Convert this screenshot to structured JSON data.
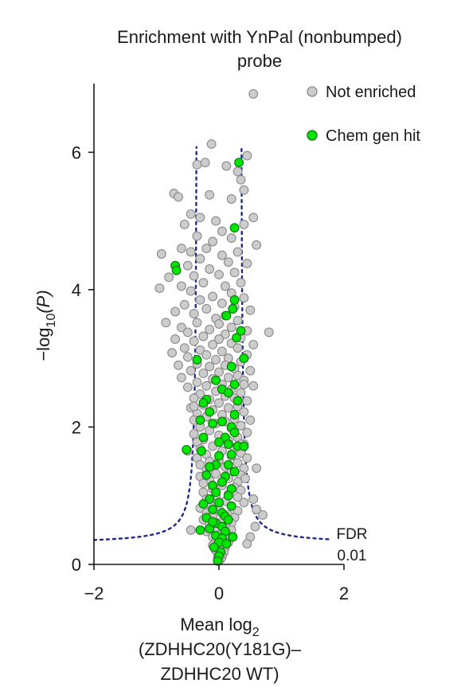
{
  "panel_label": "",
  "chart_data": {
    "type": "scatter",
    "title": [
      "Enrichment with YnPal (nonbumped)",
      "probe"
    ],
    "xlabel": {
      "line1_main": "Mean log",
      "line1_sub": "2",
      "line2": "(ZDHHC20(Y181G)–",
      "line3": "ZDHHC20 WT)"
    },
    "ylabel": {
      "pre": "−log",
      "sub": "10",
      "post": "(P)"
    },
    "xlim": [
      -2,
      2
    ],
    "ylim": [
      0,
      7
    ],
    "x_ticks": [
      {
        "value": -2,
        "label": "−2"
      },
      {
        "value": 0,
        "label": "0"
      },
      {
        "value": 2,
        "label": "2"
      }
    ],
    "y_ticks": [
      {
        "value": 0,
        "label": "0"
      },
      {
        "value": 2,
        "label": "2"
      },
      {
        "value": 4,
        "label": "4"
      },
      {
        "value": 6,
        "label": "6"
      }
    ],
    "grid": false,
    "legend_position": "top-right",
    "series": [
      {
        "name": "Not enriched",
        "color": "#cccccc",
        "edge_color": "#8a8a8a",
        "points": [
          [
            0.55,
            6.85
          ],
          [
            -0.12,
            6.12
          ],
          [
            0.45,
            5.95
          ],
          [
            -0.35,
            5.82
          ],
          [
            -0.22,
            5.85
          ],
          [
            0.12,
            5.8
          ],
          [
            0.3,
            5.72
          ],
          [
            0.35,
            5.6
          ],
          [
            0.4,
            5.45
          ],
          [
            -0.72,
            5.4
          ],
          [
            -0.65,
            5.35
          ],
          [
            -0.15,
            5.38
          ],
          [
            0.2,
            5.32
          ],
          [
            -0.45,
            5.1
          ],
          [
            -0.3,
            5.05
          ],
          [
            0.55,
            5.05
          ],
          [
            -0.05,
            5.0
          ],
          [
            0.4,
            4.95
          ],
          [
            -0.55,
            4.95
          ],
          [
            0.05,
            4.85
          ],
          [
            -0.35,
            4.78
          ],
          [
            0.2,
            4.75
          ],
          [
            -0.1,
            4.7
          ],
          [
            0.6,
            4.65
          ],
          [
            -0.2,
            4.6
          ],
          [
            0.3,
            4.55
          ],
          [
            -0.6,
            4.6
          ],
          [
            -0.45,
            4.55
          ],
          [
            0.05,
            4.5
          ],
          [
            -0.92,
            4.52
          ],
          [
            -0.3,
            4.45
          ],
          [
            0.15,
            4.4
          ],
          [
            -0.5,
            4.35
          ],
          [
            0.45,
            4.38
          ],
          [
            -0.15,
            4.3
          ],
          [
            0.25,
            4.25
          ],
          [
            -0.4,
            4.2
          ],
          [
            0.0,
            4.22
          ],
          [
            -0.8,
            4.18
          ],
          [
            -0.25,
            4.1
          ],
          [
            0.35,
            4.1
          ],
          [
            -0.6,
            4.05
          ],
          [
            0.1,
            4.05
          ],
          [
            -0.95,
            4.02
          ],
          [
            -0.45,
            3.98
          ],
          [
            0.2,
            3.95
          ],
          [
            -0.1,
            3.9
          ],
          [
            0.4,
            3.88
          ],
          [
            -0.3,
            3.85
          ],
          [
            0.05,
            3.8
          ],
          [
            -0.55,
            3.78
          ],
          [
            0.25,
            3.75
          ],
          [
            -0.2,
            3.72
          ],
          [
            0.5,
            3.7
          ],
          [
            -0.7,
            3.68
          ],
          [
            -0.4,
            3.65
          ],
          [
            0.1,
            3.62
          ],
          [
            -0.05,
            3.58
          ],
          [
            0.3,
            3.55
          ],
          [
            -0.35,
            3.52
          ],
          [
            -0.85,
            3.52
          ],
          [
            0.0,
            3.5
          ],
          [
            -0.6,
            3.45
          ],
          [
            0.2,
            3.45
          ],
          [
            -0.15,
            3.42
          ],
          [
            0.45,
            3.4
          ],
          [
            0.8,
            3.38
          ],
          [
            -0.5,
            3.38
          ],
          [
            0.1,
            3.35
          ],
          [
            -0.25,
            3.32
          ],
          [
            0.35,
            3.3
          ],
          [
            -0.7,
            3.28
          ],
          [
            0.0,
            3.28
          ],
          [
            -0.4,
            3.25
          ],
          [
            0.2,
            3.22
          ],
          [
            -0.1,
            3.2
          ],
          [
            0.55,
            3.2
          ],
          [
            -0.55,
            3.15
          ],
          [
            0.3,
            3.15
          ],
          [
            -0.3,
            3.12
          ],
          [
            0.05,
            3.1
          ],
          [
            -0.75,
            3.08
          ],
          [
            -0.2,
            3.05
          ],
          [
            0.45,
            3.05
          ],
          [
            -0.5,
            3.02
          ],
          [
            0.15,
            3.0
          ],
          [
            -0.05,
            2.98
          ],
          [
            0.35,
            2.95
          ],
          [
            -0.35,
            2.92
          ],
          [
            -0.65,
            2.9
          ],
          [
            0.1,
            2.9
          ],
          [
            -0.15,
            2.88
          ],
          [
            0.25,
            2.85
          ],
          [
            -0.45,
            2.82
          ],
          [
            0.5,
            2.82
          ],
          [
            0.0,
            2.8
          ],
          [
            -0.25,
            2.78
          ],
          [
            0.3,
            2.75
          ],
          [
            -0.6,
            2.72
          ],
          [
            0.15,
            2.72
          ],
          [
            -0.1,
            2.7
          ],
          [
            0.4,
            2.68
          ],
          [
            -0.35,
            2.65
          ],
          [
            0.05,
            2.62
          ],
          [
            -0.2,
            2.6
          ],
          [
            0.55,
            2.6
          ],
          [
            -0.5,
            2.58
          ],
          [
            0.2,
            2.55
          ],
          [
            -0.05,
            2.52
          ],
          [
            0.35,
            2.5
          ],
          [
            -0.3,
            2.48
          ],
          [
            0.1,
            2.45
          ],
          [
            -0.4,
            2.42
          ],
          [
            0.25,
            2.42
          ],
          [
            -0.15,
            2.4
          ],
          [
            0.45,
            2.38
          ],
          [
            0.0,
            2.35
          ],
          [
            -0.25,
            2.32
          ],
          [
            0.3,
            2.3
          ],
          [
            -0.45,
            2.28
          ],
          [
            0.15,
            2.28
          ],
          [
            -0.1,
            2.25
          ],
          [
            0.4,
            2.22
          ],
          [
            -0.35,
            2.2
          ],
          [
            0.05,
            2.18
          ],
          [
            -0.2,
            2.15
          ],
          [
            0.25,
            2.12
          ],
          [
            -0.4,
            2.1
          ],
          [
            0.5,
            2.1
          ],
          [
            0.1,
            2.08
          ],
          [
            -0.05,
            2.05
          ],
          [
            0.35,
            2.02
          ],
          [
            -0.3,
            2.0
          ],
          [
            0.2,
            1.98
          ],
          [
            -0.15,
            1.95
          ],
          [
            0.45,
            1.92
          ],
          [
            -0.4,
            1.9
          ],
          [
            0.0,
            1.88
          ],
          [
            0.3,
            1.85
          ],
          [
            -0.25,
            1.82
          ],
          [
            0.15,
            1.8
          ],
          [
            -0.35,
            1.78
          ],
          [
            0.4,
            1.75
          ],
          [
            -0.1,
            1.72
          ],
          [
            0.25,
            1.7
          ],
          [
            -0.3,
            1.68
          ],
          [
            0.05,
            1.65
          ],
          [
            0.35,
            1.62
          ],
          [
            -0.2,
            1.6
          ],
          [
            0.2,
            1.58
          ],
          [
            -0.35,
            1.55
          ],
          [
            0.45,
            1.55
          ],
          [
            0.0,
            1.52
          ],
          [
            -0.15,
            1.5
          ],
          [
            0.3,
            1.48
          ],
          [
            -0.3,
            1.45
          ],
          [
            0.1,
            1.42
          ],
          [
            0.4,
            1.4
          ],
          [
            -0.2,
            1.38
          ],
          [
            0.2,
            1.35
          ],
          [
            -0.05,
            1.32
          ],
          [
            0.35,
            1.3
          ],
          [
            -0.3,
            1.28
          ],
          [
            0.15,
            1.25
          ],
          [
            -0.15,
            1.22
          ],
          [
            0.3,
            1.2
          ],
          [
            -0.25,
            1.18
          ],
          [
            0.05,
            1.15
          ],
          [
            0.25,
            1.12
          ],
          [
            -0.1,
            1.1
          ],
          [
            0.35,
            1.08
          ],
          [
            -0.25,
            1.05
          ],
          [
            0.15,
            1.02
          ],
          [
            -0.05,
            1.0
          ],
          [
            0.3,
            0.98
          ],
          [
            -0.2,
            0.95
          ],
          [
            0.1,
            0.92
          ],
          [
            0.4,
            0.9
          ],
          [
            -0.15,
            0.88
          ],
          [
            0.2,
            0.85
          ],
          [
            -0.3,
            0.82
          ],
          [
            0.0,
            0.8
          ],
          [
            0.3,
            0.78
          ],
          [
            -0.2,
            0.75
          ],
          [
            0.15,
            0.72
          ],
          [
            -0.1,
            0.7
          ],
          [
            0.25,
            0.68
          ],
          [
            -0.25,
            0.65
          ],
          [
            0.05,
            0.62
          ],
          [
            0.2,
            0.6
          ],
          [
            -0.15,
            0.58
          ],
          [
            0.1,
            0.55
          ],
          [
            -0.05,
            0.52
          ],
          [
            0.2,
            0.5
          ],
          [
            -0.2,
            0.48
          ],
          [
            0.05,
            0.45
          ],
          [
            0.15,
            0.42
          ],
          [
            -0.1,
            0.4
          ],
          [
            0.1,
            0.38
          ],
          [
            -0.05,
            0.35
          ],
          [
            0.15,
            0.32
          ],
          [
            0.0,
            0.3
          ],
          [
            -0.1,
            0.28
          ],
          [
            0.1,
            0.25
          ],
          [
            0.05,
            0.22
          ],
          [
            -0.05,
            0.2
          ],
          [
            0.08,
            0.18
          ],
          [
            0.0,
            0.15
          ],
          [
            0.05,
            0.12
          ],
          [
            -0.02,
            0.1
          ],
          [
            0.03,
            0.08
          ],
          [
            0.0,
            0.05
          ],
          [
            0.58,
            0.55
          ],
          [
            0.7,
            0.72
          ],
          [
            0.6,
            0.8
          ],
          [
            0.55,
            0.95
          ],
          [
            0.6,
            1.4
          ],
          [
            0.35,
            1.75
          ],
          [
            0.4,
            2.62
          ],
          [
            -0.4,
            2.3
          ],
          [
            -0.5,
            1.65
          ],
          [
            0.42,
            1.25
          ],
          [
            0.5,
            0.4
          ],
          [
            -0.45,
            0.5
          ],
          [
            0.45,
            0.3
          ]
        ]
      },
      {
        "name": "Chem gen hit",
        "color": "#00e600",
        "edge_color": "#1a6a1a",
        "points": [
          [
            0.32,
            5.85
          ],
          [
            0.25,
            4.9
          ],
          [
            -0.7,
            4.35
          ],
          [
            -0.68,
            4.28
          ],
          [
            0.25,
            3.85
          ],
          [
            0.22,
            3.72
          ],
          [
            0.12,
            3.62
          ],
          [
            0.35,
            3.4
          ],
          [
            0.28,
            3.3
          ],
          [
            -0.35,
            2.98
          ],
          [
            0.4,
            3.0
          ],
          [
            0.2,
            2.88
          ],
          [
            -0.05,
            2.68
          ],
          [
            0.25,
            2.62
          ],
          [
            0.05,
            2.55
          ],
          [
            0.15,
            2.5
          ],
          [
            -0.2,
            2.4
          ],
          [
            -0.25,
            2.35
          ],
          [
            0.3,
            2.38
          ],
          [
            -0.15,
            2.22
          ],
          [
            0.25,
            2.18
          ],
          [
            -0.3,
            2.1
          ],
          [
            -0.1,
            2.05
          ],
          [
            0.05,
            2.08
          ],
          [
            0.2,
            2.0
          ],
          [
            0.25,
            1.92
          ],
          [
            0.1,
            1.85
          ],
          [
            -0.25,
            1.85
          ],
          [
            0.0,
            1.78
          ],
          [
            0.15,
            1.75
          ],
          [
            0.3,
            1.72
          ],
          [
            -0.52,
            1.67
          ],
          [
            -0.28,
            1.65
          ],
          [
            0.4,
            1.72
          ],
          [
            0.2,
            1.6
          ],
          [
            0.0,
            1.58
          ],
          [
            -0.05,
            1.45
          ],
          [
            0.15,
            1.45
          ],
          [
            -0.15,
            1.42
          ],
          [
            0.25,
            1.35
          ],
          [
            -0.2,
            1.3
          ],
          [
            0.1,
            1.28
          ],
          [
            0.05,
            1.2
          ],
          [
            -0.1,
            1.15
          ],
          [
            0.2,
            1.1
          ],
          [
            -0.05,
            1.05
          ],
          [
            0.15,
            1.0
          ],
          [
            -0.15,
            0.95
          ],
          [
            0.0,
            0.9
          ],
          [
            -0.25,
            0.88
          ],
          [
            0.2,
            0.85
          ],
          [
            -0.1,
            0.8
          ],
          [
            0.05,
            0.75
          ],
          [
            0.1,
            0.7
          ],
          [
            -0.2,
            0.68
          ],
          [
            0.15,
            0.65
          ],
          [
            -0.05,
            0.6
          ],
          [
            0.05,
            0.55
          ],
          [
            -0.15,
            0.52
          ],
          [
            0.1,
            0.48
          ],
          [
            -0.05,
            0.42
          ],
          [
            0.05,
            0.38
          ],
          [
            0.0,
            0.32
          ],
          [
            -0.08,
            0.25
          ],
          [
            0.03,
            0.18
          ],
          [
            0.0,
            0.12
          ],
          [
            -0.02,
            0.05
          ],
          [
            -0.3,
            0.5
          ],
          [
            0.12,
            0.3
          ],
          [
            0.22,
            0.4
          ],
          [
            -0.1,
            0.62
          ]
        ]
      }
    ],
    "threshold": {
      "label_line1": "FDR",
      "label_line2": "0.01",
      "color": "#1f2a8c",
      "style": "dotted"
    }
  }
}
